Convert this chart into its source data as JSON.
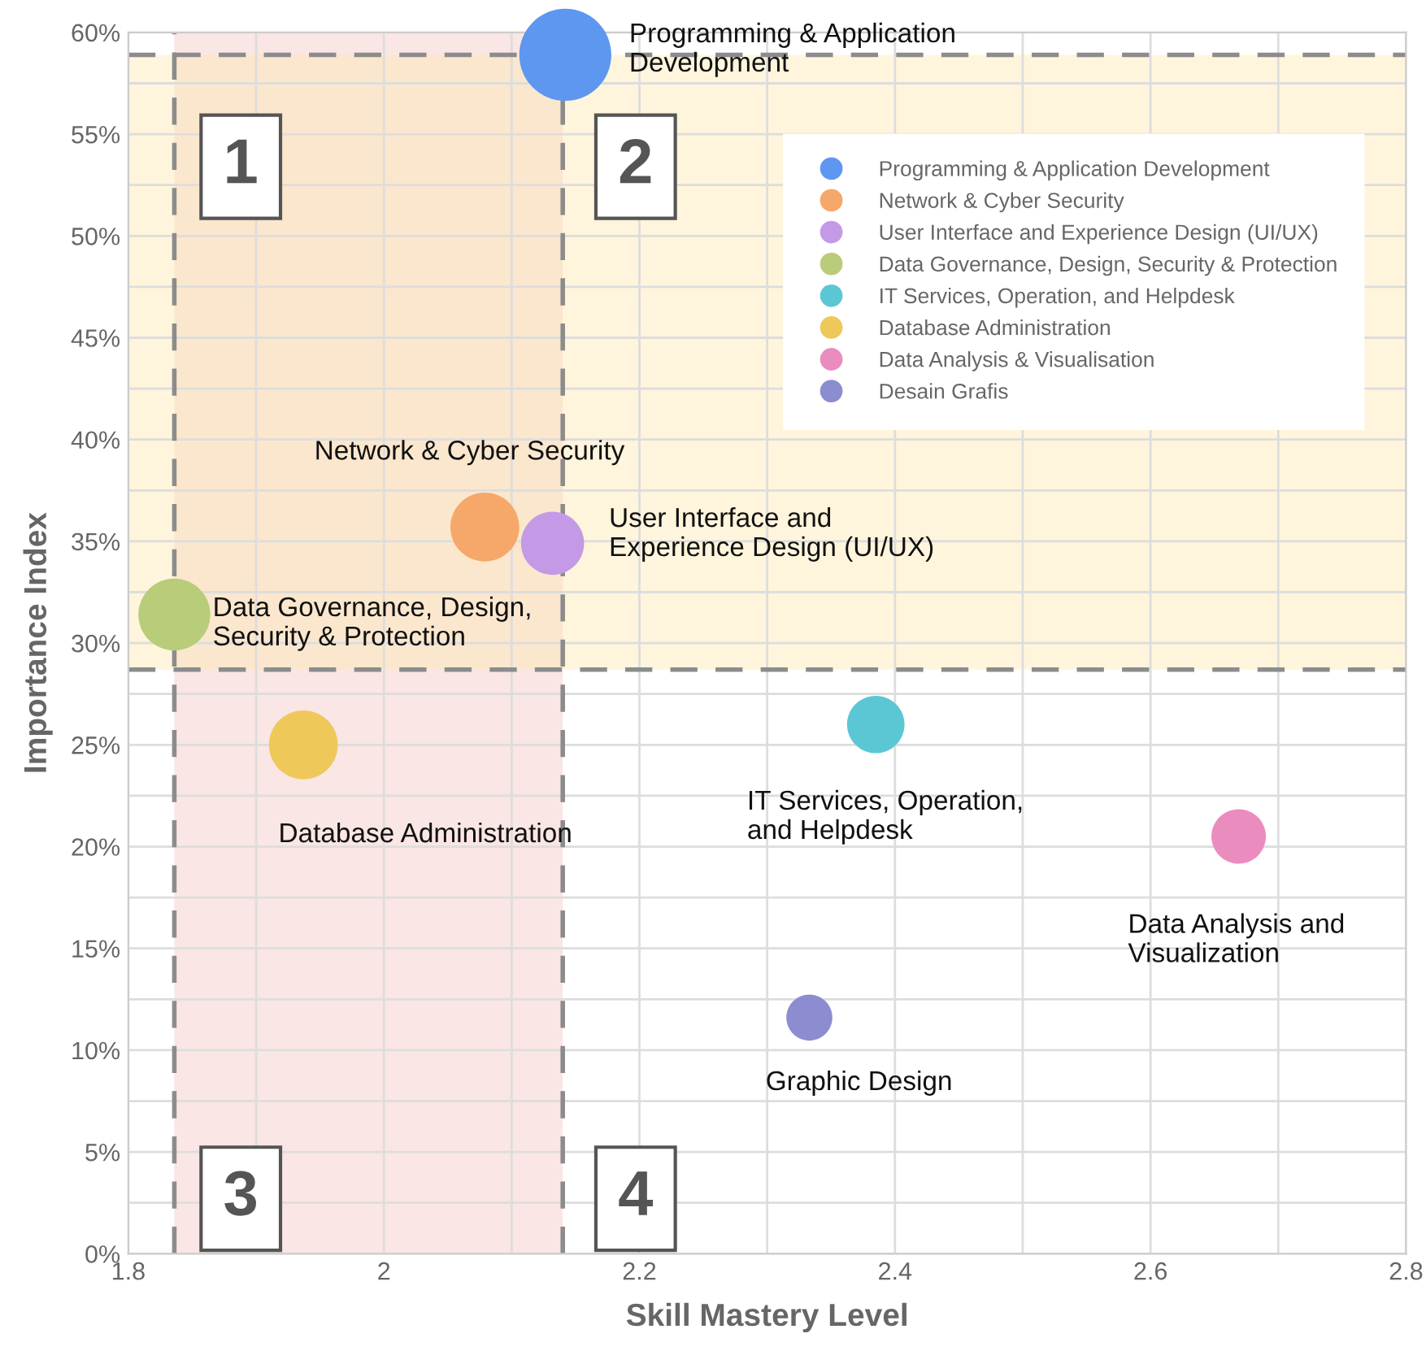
{
  "chart_data": {
    "type": "bubble",
    "xlabel": "Skill Mastery Level",
    "ylabel": "Importance Index",
    "series": [
      {
        "name": "Programming & Application Development",
        "color": "#5e97f0",
        "x": [
          2.142
        ],
        "values": [
          58.9
        ],
        "sizes": [
          1
        ]
      },
      {
        "name": "Network & Cyber Security",
        "color": "#f5a869",
        "x": [
          2.079
        ],
        "values": [
          35.7
        ],
        "sizes": [
          0.56
        ]
      },
      {
        "name": "User Interface and Experience Design (UI/UX)",
        "color": "#c49ae6",
        "x": [
          2.132
        ],
        "values": [
          34.9
        ],
        "sizes": [
          0.47
        ]
      },
      {
        "name": "Data Governance, Design, Security & Protection",
        "color": "#b9cc7a",
        "x": [
          1.836
        ],
        "values": [
          31.4
        ],
        "sizes": [
          0.61
        ]
      },
      {
        "name": "IT Services, Operation, and Helpdesk",
        "color": "#5cc7d4",
        "x": [
          2.385
        ],
        "values": [
          26.0
        ],
        "sizes": [
          0.39
        ]
      },
      {
        "name": "Database Administration",
        "color": "#eec95a",
        "x": [
          1.937
        ],
        "values": [
          25.0
        ],
        "sizes": [
          0.56
        ]
      },
      {
        "name": "Data Analysis & Visualisation",
        "color": "#eb8cbf",
        "x": [
          2.669
        ],
        "values": [
          20.5
        ],
        "sizes": [
          0.35
        ]
      },
      {
        "name": "Desain Grafis",
        "color": "#8c8cd0",
        "x": [
          2.333
        ],
        "values": [
          11.6
        ],
        "sizes": [
          0.25
        ]
      }
    ],
    "xlim": [
      1.8,
      2.8
    ],
    "xticks": [
      1.8,
      {
        "value": 1.9,
        "label": null
      },
      2,
      {
        "value": 2.1,
        "label": null
      },
      2.2,
      {
        "value": 2.3,
        "label": null
      },
      2.4,
      {
        "value": 2.5,
        "label": null
      },
      2.6,
      {
        "value": 2.7,
        "label": null
      },
      2.8
    ],
    "ylim": [
      0,
      60
    ],
    "yticks": [
      {
        "value": 0,
        "label": "0%"
      },
      {
        "value": 2.5,
        "label": null
      },
      {
        "value": 5,
        "label": "5%"
      },
      {
        "value": 7.5,
        "label": null
      },
      {
        "value": 10,
        "label": "10%"
      },
      {
        "value": 12.5,
        "label": null
      },
      {
        "value": 15,
        "label": "15%"
      },
      {
        "value": 17.5,
        "label": null
      },
      {
        "value": 20,
        "label": "20%"
      },
      {
        "value": 22.5,
        "label": null
      },
      {
        "value": 25,
        "label": "25%"
      },
      {
        "value": 27.5,
        "label": null
      },
      {
        "value": 30,
        "label": "30%"
      },
      {
        "value": 32.5,
        "label": null
      },
      {
        "value": 35,
        "label": "35%"
      },
      {
        "value": 37.5,
        "label": null
      },
      {
        "value": 40,
        "label": "40%"
      },
      {
        "value": 42.5,
        "label": null
      },
      {
        "value": 45,
        "label": "45%"
      },
      {
        "value": 47.5,
        "label": null
      },
      {
        "value": 50,
        "label": "50%"
      },
      {
        "value": 52.5,
        "label": null
      },
      {
        "value": 55,
        "label": "55%"
      },
      {
        "value": 57.5,
        "label": null
      },
      {
        "value": 60,
        "label": "60%"
      }
    ],
    "grid": true,
    "legend": "top right",
    "ref_lines": [
      {
        "axis": "x",
        "value": 1.836,
        "color": "#8c8c8c",
        "line_style": "dashed"
      },
      {
        "axis": "x",
        "value": 2.14,
        "color": "#8c8c8c",
        "line_style": "dashed"
      },
      {
        "axis": "y",
        "value": 58.9,
        "color": "#8c8c8c",
        "line_style": "dashed"
      },
      {
        "axis": "y",
        "value": 28.7,
        "color": "#8c8c8c",
        "line_style": "dashed"
      }
    ],
    "bands": [
      {
        "axis": "x",
        "from": 1.836,
        "to": 2.14,
        "color": "#f4c7c3"
      },
      {
        "axis": "y",
        "from": 28.7,
        "to": 58.9,
        "color": "#fce8b2"
      }
    ],
    "annotations": [
      "Programming & Application\nDevelopment",
      "Network & Cyber Security",
      {
        "text": "User Interface and\nExperience Design (UI/UX)",
        "x": 2.132,
        "y": 34.9
      },
      {
        "text": "Data Governance, Design,\nSecurity & Protection",
        "x": 1.836,
        "y": 31.4
      },
      {
        "text": "IT Services, Operation,\nand Helpdesk",
        "x": 2.385,
        "y": 26.0
      },
      {
        "text": "Database Administration",
        "x": 1.937,
        "y": 25.0
      },
      {
        "text": "Data Analysis and\nVisualization",
        "x": 2.669,
        "y": 20.5
      },
      {
        "text": "Graphic Design",
        "x": 2.333,
        "y": 11.6
      },
      "1",
      "2",
      "3",
      "4"
    ]
  }
}
